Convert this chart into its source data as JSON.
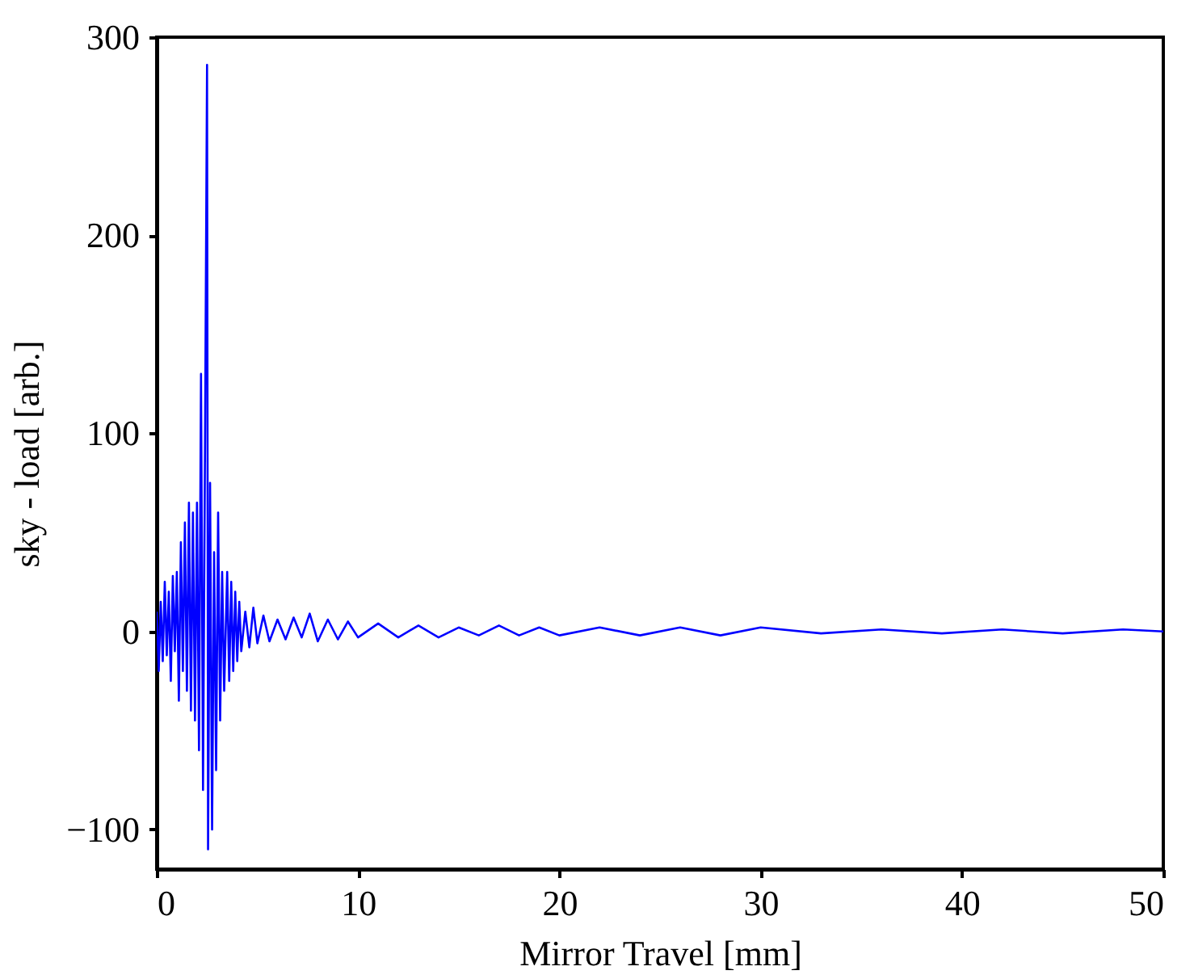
{
  "chart_data": {
    "type": "line",
    "xlabel": "Mirror Travel [mm]",
    "ylabel": "sky - load [arb.]",
    "xlim": [
      0,
      50
    ],
    "xticks": [
      0,
      10,
      20,
      30,
      40,
      50
    ],
    "ylim": [
      -120,
      300
    ],
    "yticks": [
      -100,
      0,
      100,
      200,
      300
    ],
    "grid": false,
    "line_style": "solid",
    "marker": "none",
    "series": [
      {
        "color": "#0000ff",
        "x": [
          0.0,
          0.1,
          0.2,
          0.3,
          0.4,
          0.5,
          0.6,
          0.7,
          0.8,
          0.9,
          1.0,
          1.1,
          1.2,
          1.3,
          1.4,
          1.5,
          1.6,
          1.7,
          1.8,
          1.9,
          2.0,
          2.1,
          2.2,
          2.3,
          2.4,
          2.5,
          2.55,
          2.65,
          2.75,
          2.85,
          2.95,
          3.05,
          3.15,
          3.25,
          3.35,
          3.5,
          3.6,
          3.7,
          3.8,
          3.9,
          4.0,
          4.1,
          4.2,
          4.4,
          4.6,
          4.8,
          5.0,
          5.3,
          5.6,
          6.0,
          6.4,
          6.8,
          7.2,
          7.6,
          8.0,
          8.5,
          9,
          9.5,
          10,
          11,
          12,
          13,
          14,
          15,
          16,
          17,
          18,
          19,
          20,
          22,
          24,
          26,
          28,
          30,
          33,
          36,
          39,
          42,
          45,
          48,
          50
        ],
        "values": [
          10,
          -20,
          15,
          -15,
          25,
          -12,
          20,
          -25,
          28,
          -10,
          30,
          -35,
          45,
          -20,
          55,
          -30,
          65,
          -40,
          60,
          -45,
          65,
          -60,
          130,
          -80,
          95,
          286,
          -110,
          75,
          -100,
          40,
          -70,
          60,
          -45,
          30,
          -30,
          30,
          -25,
          25,
          -20,
          20,
          -15,
          15,
          -10,
          10,
          -8,
          12,
          -6,
          8,
          -5,
          6,
          -4,
          7,
          -3,
          9,
          -5,
          6,
          -4,
          5,
          -3,
          4,
          -3,
          3,
          -3,
          2,
          -2,
          3,
          -2,
          2,
          -2,
          2,
          -2,
          2,
          -2,
          2,
          -1,
          1,
          -1,
          1,
          -1,
          1,
          0
        ]
      }
    ]
  }
}
